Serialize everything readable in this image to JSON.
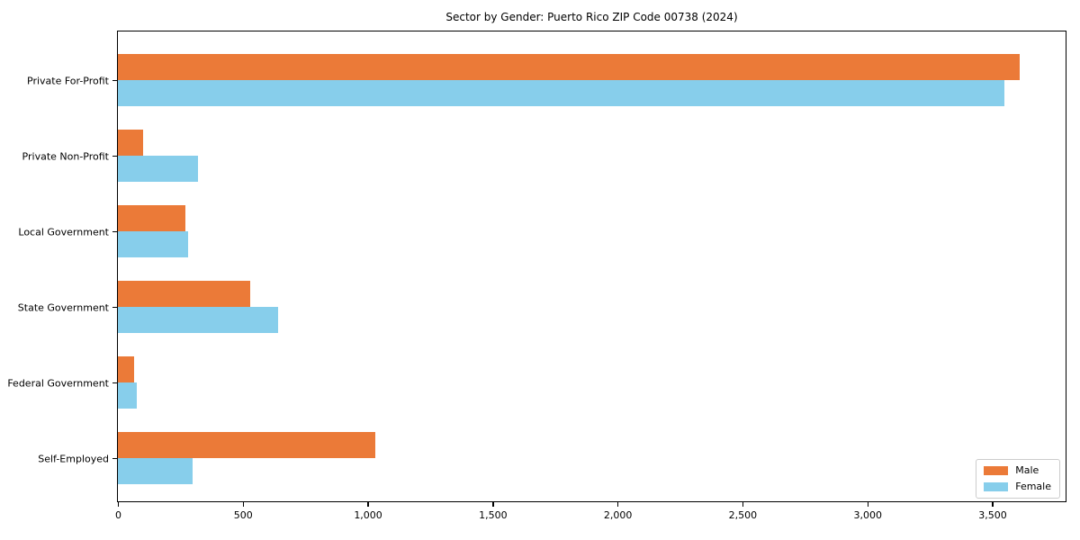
{
  "chart_data": {
    "type": "bar",
    "orientation": "horizontal",
    "title": "Sector by Gender: Puerto Rico ZIP Code 00738 (2024)",
    "categories": [
      "Private For-Profit",
      "Private Non-Profit",
      "Local Government",
      "State Government",
      "Federal Government",
      "Self-Employed"
    ],
    "series": [
      {
        "name": "Male",
        "color": "#EB7A38",
        "values": [
          3610,
          100,
          270,
          530,
          65,
          1030
        ]
      },
      {
        "name": "Female",
        "color": "#87CEEB",
        "values": [
          3550,
          320,
          280,
          640,
          75,
          300
        ]
      }
    ],
    "xlabel": "",
    "ylabel": "",
    "xlim": [
      0,
      3790
    ],
    "xticks": [
      0,
      500,
      1000,
      1500,
      2000,
      2500,
      3000,
      3500
    ],
    "xtick_labels": [
      "0",
      "500",
      "1,000",
      "1,500",
      "2,000",
      "2,500",
      "3,000",
      "3,500"
    ],
    "grid": false,
    "legend_position": "lower right",
    "frame_color": "#000000",
    "background_color": "#ffffff"
  }
}
